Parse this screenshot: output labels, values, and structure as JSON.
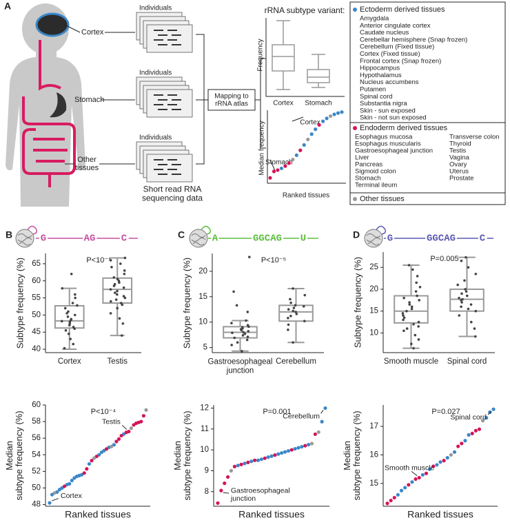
{
  "panel_a": {
    "label": "A",
    "individuals": [
      "Individuals",
      "Individuals",
      "Individuals"
    ],
    "tissues": [
      "Cortex",
      "Stomach",
      "Other\ntissues"
    ],
    "sequencing": "Short read RNA\nsequencing data",
    "mapping": "Mapping to\nrRNA atlas",
    "variant_title": "rRNA subtype variant:",
    "box_ylabel": "Frequency",
    "box_categories": [
      "Cortex",
      "Stomach"
    ],
    "rank_ylabel": "Median frequency",
    "rank_xlabel": "Ranked tissues",
    "rank_annotations": [
      "Cortex",
      "Stomach"
    ],
    "legend": {
      "ectoderm_title": "Ectoderm derived tissues",
      "ectoderm": [
        "Amygdala",
        "Anterior cingulate cortex",
        "Caudate nucleus",
        "Cerebellar hemisphere (Snap frozen)",
        "Cerebellum (Fixed tissue)",
        "Cortex (Fixed tissue)",
        "Frontal cortex (Snap frozen)",
        "Hippocampus",
        "Hypothalamus",
        "Nucleus accumbens",
        "Putamen",
        "Spinal cord",
        "Substantia nigra",
        "Skin - sun exposed",
        "Skin - not sun exposed"
      ],
      "endoderm_title": "Endoderm derived tissues",
      "endoderm_left": [
        "Esophagus mucosa",
        "Esophagus muscularis",
        "Gastroesophageal junction",
        "Liver",
        "Pancreas",
        "Sigmoid colon",
        "Stomach",
        "Terminal ileum"
      ],
      "endoderm_right": [
        "Transverse colon",
        "Thyroid",
        "Testis",
        "Vagina",
        "Ovary",
        "Uterus",
        "Prostate"
      ],
      "other_title": "Other tissues"
    }
  },
  "panels": [
    {
      "label": "B",
      "sequence": [
        "G",
        "AG",
        "C"
      ],
      "color": "#c64f9e"
    },
    {
      "label": "C",
      "sequence": [
        "A",
        "GGCAG",
        "U"
      ],
      "color": "#5cbd3c"
    },
    {
      "label": "D",
      "sequence": [
        "G",
        "GGCAG",
        "C"
      ],
      "color": "#5858b4"
    }
  ],
  "chart_data": [
    {
      "type": "box",
      "annotation": "P<10⁻⁵",
      "ylabel": "Subtype frequency (%)",
      "categories": [
        "Cortex",
        "Testis"
      ],
      "ylim": [
        39,
        68
      ],
      "yticks": [
        40,
        45,
        50,
        55,
        60,
        65
      ],
      "boxes": [
        {
          "whisker_low": 40,
          "q1": 46.2,
          "median": 48.3,
          "q3": 52.7,
          "whisker_high": 57.8,
          "points": [
            40.3,
            41.5,
            43,
            44.5,
            45.5,
            46,
            46.5,
            47,
            47.5,
            48,
            48.2,
            48.5,
            48.8,
            49.5,
            50,
            50.5,
            51,
            52,
            52.8,
            53.5,
            55,
            56,
            57.8,
            62
          ]
        },
        {
          "whisker_low": 44,
          "q1": 53.5,
          "median": 57.5,
          "q3": 60.8,
          "whisker_high": 66.7,
          "points": [
            44,
            47.5,
            49,
            50.5,
            52,
            53,
            53.5,
            54,
            54.5,
            55,
            55.5,
            56,
            56.5,
            57,
            57.5,
            58,
            58.5,
            59,
            59.5,
            60,
            60.5,
            61,
            62,
            63,
            64,
            65,
            66,
            66.7
          ]
        }
      ]
    },
    {
      "type": "box",
      "annotation": "P<10⁻⁵",
      "ylabel": "Subtype frequency (%)",
      "categories": [
        "Gastroesophageal\njunction",
        "Cerebellum"
      ],
      "ylim": [
        4,
        23.5
      ],
      "yticks": [
        5,
        10,
        15,
        20
      ],
      "boxes": [
        {
          "whisker_low": 4.3,
          "q1": 6.9,
          "median": 8,
          "q3": 9.1,
          "whisker_high": 10.3,
          "points": [
            4.3,
            5.5,
            6,
            6.5,
            6.9,
            7.1,
            7.4,
            7.7,
            7.9,
            8.0,
            8.2,
            8.4,
            8.6,
            8.8,
            9.0,
            9.1,
            9.4,
            9.8,
            10.3,
            12,
            13.3,
            16,
            22.8
          ]
        },
        {
          "whisker_low": 6,
          "q1": 10.2,
          "median": 12,
          "q3": 13.3,
          "whisker_high": 16.6,
          "points": [
            6,
            8.5,
            9.5,
            10.2,
            10.8,
            11.2,
            11.6,
            12,
            12.2,
            12.5,
            12.8,
            13.1,
            13.3,
            13.8,
            14.5,
            15.3,
            16.6
          ]
        }
      ]
    },
    {
      "type": "box",
      "annotation": "P=0.005",
      "ylabel": "Subtype frequency (%)",
      "categories": [
        "Smooth muscle",
        "Spinal cord"
      ],
      "ylim": [
        5.5,
        28.5
      ],
      "yticks": [
        10,
        15,
        20,
        25
      ],
      "boxes": [
        {
          "whisker_low": 6.5,
          "q1": 12.3,
          "median": 15,
          "q3": 18.5,
          "whisker_high": 25.5,
          "points": [
            6.5,
            7.5,
            8.5,
            9.5,
            10.5,
            11,
            11.5,
            12,
            12.5,
            13,
            13.5,
            14,
            14.5,
            15,
            15.5,
            16,
            16.5,
            17,
            17.5,
            18,
            18.5,
            19.5,
            20.5,
            21.5,
            23,
            24.5,
            25.5
          ]
        },
        {
          "whisker_low": 9.2,
          "q1": 15,
          "median": 17.7,
          "q3": 20,
          "whisker_high": 27.3,
          "points": [
            9.2,
            11,
            12.5,
            14,
            15,
            15.5,
            16,
            16.5,
            17,
            17.5,
            17.7,
            18,
            18.5,
            19,
            19.5,
            20,
            21,
            22,
            23.5,
            25,
            26.5,
            27.3
          ]
        }
      ]
    },
    {
      "type": "scatter",
      "annotation": "P<10⁻⁴",
      "ylabel": "Median\nsubtype frequency (%)",
      "xlabel": "Ranked tissues",
      "annotations": [
        "Cortex",
        "Testis"
      ],
      "ylim": [
        47.8,
        60
      ],
      "yticks": [
        48,
        50,
        52,
        54,
        56,
        58,
        60
      ],
      "series": [
        {
          "color": "#3a87c8",
          "x": [
            1,
            2,
            4,
            5,
            6,
            8,
            9,
            10,
            11,
            12,
            13,
            14,
            17,
            21,
            22,
            23,
            25,
            27,
            31
          ],
          "values": [
            48.2,
            49.2,
            49.5,
            49.8,
            50.0,
            50.4,
            50.5,
            50.9,
            51.2,
            51.4,
            51.5,
            51.6,
            52.9,
            54.0,
            54.3,
            54.5,
            54.9,
            55.2,
            56.5
          ]
        },
        {
          "color": "#d4145a",
          "x": [
            7,
            15,
            16,
            18,
            20,
            24,
            28,
            29,
            30,
            32,
            33,
            35,
            36,
            37,
            38,
            39
          ],
          "values": [
            50.2,
            51.8,
            52.3,
            53.3,
            53.8,
            54.7,
            55.6,
            55.9,
            56.3,
            56.7,
            56.8,
            57.6,
            57.8,
            57.9,
            58.0,
            58.7
          ]
        },
        {
          "color": "#999999",
          "x": [
            3,
            19,
            26,
            34,
            40
          ],
          "values": [
            49.4,
            53.6,
            55.0,
            57.2,
            59.4
          ]
        }
      ]
    },
    {
      "type": "scatter",
      "annotation": "P=0.001",
      "ylabel": "Median\nsubtype frequency (%)",
      "xlabel": "Ranked tissues",
      "annotations": [
        "Cerebellum",
        "Gastroesophageal\njunction"
      ],
      "ylim": [
        7.3,
        12.15
      ],
      "yticks": [
        8,
        9,
        10,
        11,
        12
      ],
      "series": [
        {
          "color": "#3a87c8",
          "x": [
            7,
            9,
            11,
            13,
            14,
            16,
            17,
            19,
            20,
            21,
            22,
            24,
            25,
            26,
            28,
            32,
            33
          ],
          "values": [
            9.25,
            9.35,
            9.45,
            9.5,
            9.55,
            9.65,
            9.7,
            9.8,
            9.85,
            9.9,
            9.95,
            10.05,
            10.1,
            10.15,
            10.25,
            11.35,
            12.0
          ]
        },
        {
          "color": "#d4145a",
          "x": [
            1,
            2,
            3,
            4,
            6,
            8,
            10,
            12,
            15,
            18,
            23,
            27,
            30
          ],
          "values": [
            7.45,
            8.05,
            8.4,
            8.7,
            9.2,
            9.3,
            9.4,
            9.5,
            9.6,
            9.75,
            10.0,
            10.2,
            10.75
          ]
        },
        {
          "color": "#999999",
          "x": [
            5,
            29,
            31
          ],
          "values": [
            9.0,
            10.3,
            10.85
          ]
        }
      ]
    },
    {
      "type": "scatter",
      "annotation": "P=0.027",
      "ylabel": "Median\nsubtype frequency (%)",
      "xlabel": "Ranked tissues",
      "annotations": [
        "Smooth muscle",
        "Spinal cord"
      ],
      "ylim": [
        14.2,
        17.75
      ],
      "yticks": [
        15,
        16,
        17
      ],
      "series": [
        {
          "color": "#3a87c8",
          "x": [
            4,
            5,
            6,
            8,
            11,
            13,
            15,
            16,
            18,
            20,
            23,
            24,
            29,
            30,
            31
          ],
          "values": [
            14.6,
            14.75,
            14.85,
            15.05,
            15.3,
            15.5,
            15.65,
            15.75,
            15.9,
            16.1,
            16.5,
            16.7,
            17.3,
            17.5,
            17.6
          ]
        },
        {
          "color": "#d4145a",
          "x": [
            1,
            2,
            3,
            7,
            9,
            10,
            12,
            14,
            17,
            21,
            22,
            25,
            26,
            27
          ],
          "values": [
            14.3,
            14.4,
            14.5,
            14.95,
            15.15,
            15.2,
            15.35,
            15.6,
            15.8,
            16.3,
            16.4,
            16.75,
            16.85,
            16.9
          ]
        },
        {
          "color": "#999999",
          "x": [
            19,
            28
          ],
          "values": [
            16.0,
            17.2
          ]
        }
      ]
    }
  ]
}
